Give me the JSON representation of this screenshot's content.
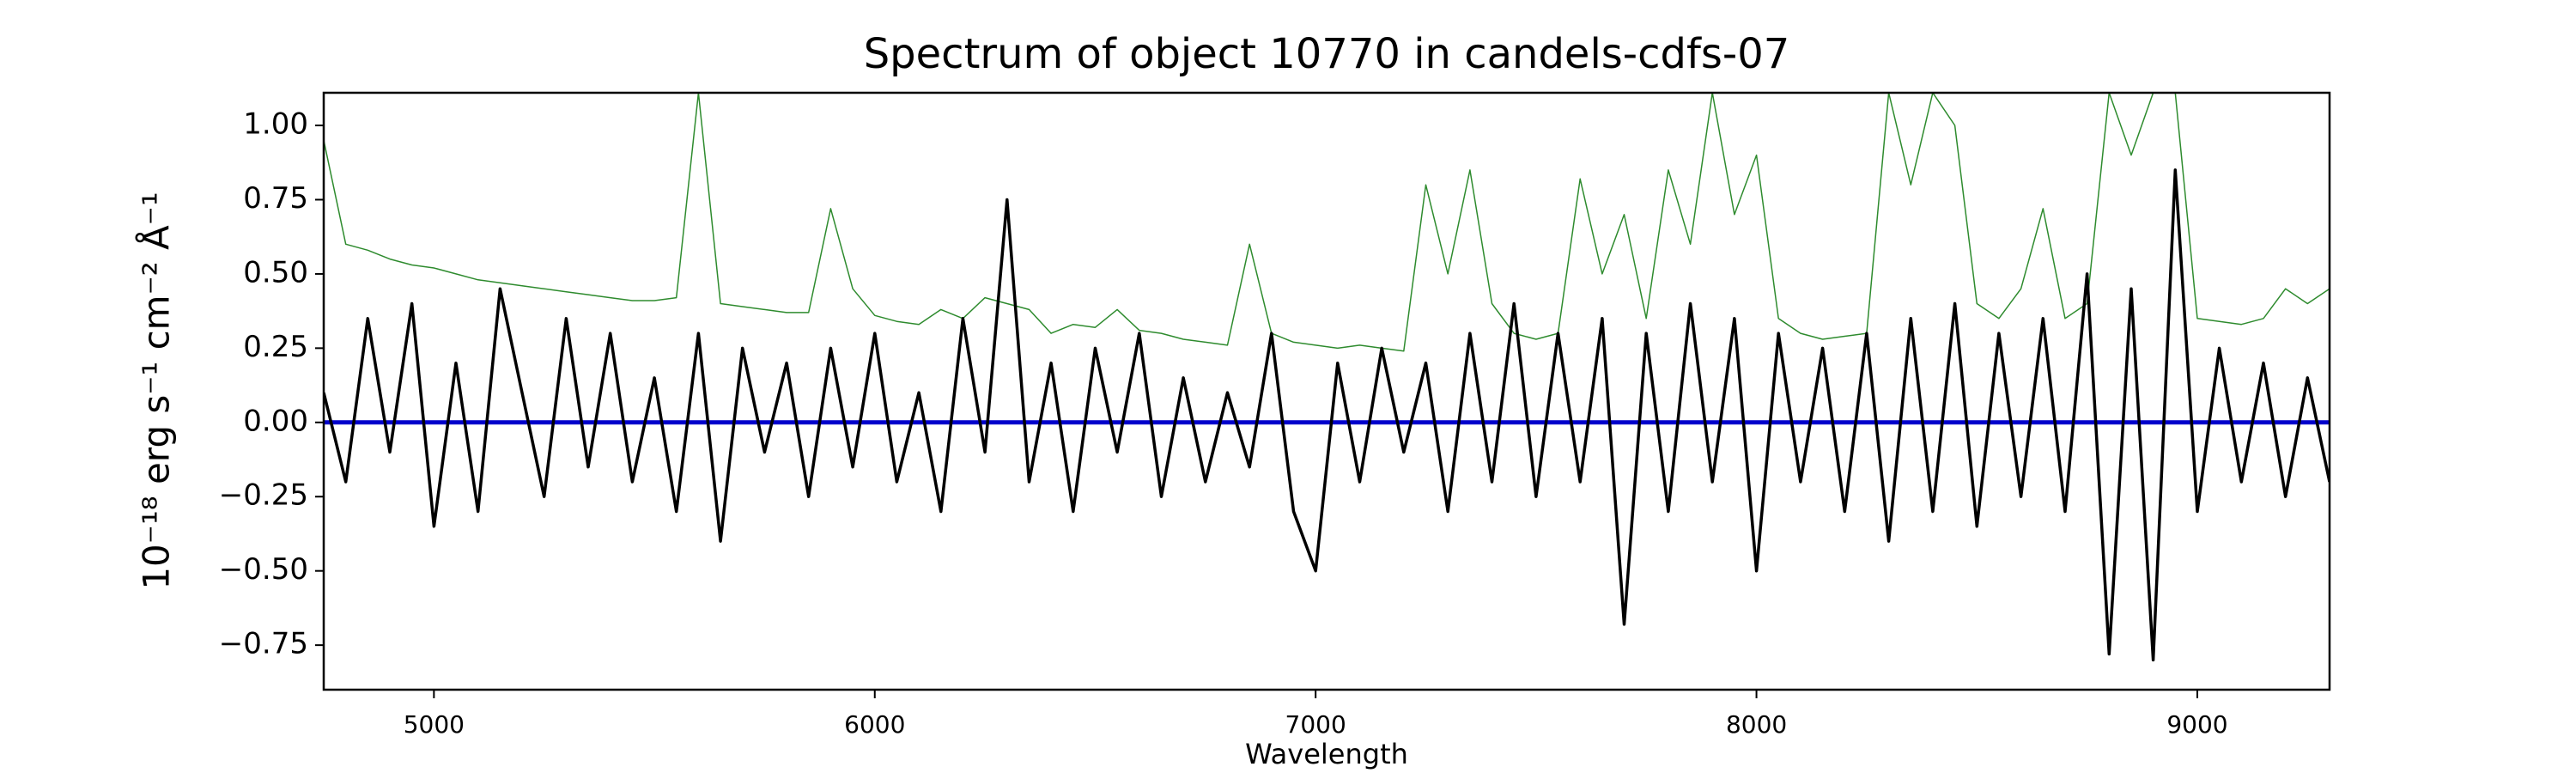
{
  "chart_data": {
    "type": "line",
    "title": "Spectrum of object 10770 in candels-cdfs-07",
    "xlabel": "Wavelength",
    "ylabel": "10⁻¹⁸ erg s⁻¹ cm⁻² Å⁻¹",
    "x": [
      4750,
      4800,
      4850,
      4900,
      4950,
      5000,
      5050,
      5100,
      5150,
      5200,
      5250,
      5300,
      5350,
      5400,
      5450,
      5500,
      5550,
      5600,
      5650,
      5700,
      5750,
      5800,
      5850,
      5900,
      5950,
      6000,
      6050,
      6100,
      6150,
      6200,
      6250,
      6300,
      6350,
      6400,
      6450,
      6500,
      6550,
      6600,
      6650,
      6700,
      6750,
      6800,
      6850,
      6900,
      6950,
      7000,
      7050,
      7100,
      7150,
      7200,
      7250,
      7300,
      7350,
      7400,
      7450,
      7500,
      7550,
      7600,
      7650,
      7700,
      7750,
      7800,
      7850,
      7900,
      7950,
      8000,
      8050,
      8100,
      8150,
      8200,
      8250,
      8300,
      8350,
      8400,
      8450,
      8500,
      8550,
      8600,
      8650,
      8700,
      8750,
      8800,
      8850,
      8900,
      8950,
      9000,
      9050,
      9100,
      9150,
      9200,
      9250,
      9300
    ],
    "series": [
      {
        "color": "#2e8b2e",
        "width": 1.5,
        "values": [
          0.95,
          0.6,
          0.58,
          0.55,
          0.53,
          0.52,
          0.5,
          0.48,
          0.47,
          0.46,
          0.45,
          0.44,
          0.43,
          0.42,
          0.41,
          0.41,
          0.42,
          1.11,
          0.4,
          0.39,
          0.38,
          0.37,
          0.37,
          0.72,
          0.45,
          0.36,
          0.34,
          0.33,
          0.38,
          0.35,
          0.42,
          0.4,
          0.38,
          0.3,
          0.33,
          0.32,
          0.38,
          0.31,
          0.3,
          0.28,
          0.27,
          0.26,
          0.6,
          0.3,
          0.27,
          0.26,
          0.25,
          0.26,
          0.25,
          0.24,
          0.8,
          0.5,
          0.85,
          0.4,
          0.3,
          0.28,
          0.3,
          0.82,
          0.5,
          0.7,
          0.35,
          0.85,
          0.6,
          1.11,
          0.7,
          0.9,
          0.35,
          0.3,
          0.28,
          0.29,
          0.3,
          1.11,
          0.8,
          1.11,
          1.0,
          0.4,
          0.35,
          0.45,
          0.72,
          0.35,
          0.4,
          1.11,
          0.9,
          1.11,
          1.11,
          0.35,
          0.34,
          0.33,
          0.35,
          0.45,
          0.4,
          0.45
        ]
      },
      {
        "color": "#0000cc",
        "width": 5,
        "values": [
          0,
          0,
          0,
          0,
          0,
          0,
          0,
          0,
          0,
          0,
          0,
          0,
          0,
          0,
          0,
          0,
          0,
          0,
          0,
          0,
          0,
          0,
          0,
          0,
          0,
          0,
          0,
          0,
          0,
          0,
          0,
          0,
          0,
          0,
          0,
          0,
          0,
          0,
          0,
          0,
          0,
          0,
          0,
          0,
          0,
          0,
          0,
          0,
          0,
          0,
          0,
          0,
          0,
          0,
          0,
          0,
          0,
          0,
          0,
          0,
          0,
          0,
          0,
          0,
          0,
          0,
          0,
          0,
          0,
          0,
          0,
          0,
          0,
          0,
          0,
          0,
          0,
          0,
          0,
          0,
          0,
          0,
          0,
          0,
          0,
          0,
          0,
          0,
          0,
          0,
          0,
          0
        ]
      },
      {
        "color": "#000000",
        "width": 3.5,
        "values": [
          0.1,
          -0.2,
          0.35,
          -0.1,
          0.4,
          -0.35,
          0.2,
          -0.3,
          0.45,
          0.1,
          -0.25,
          0.35,
          -0.15,
          0.3,
          -0.2,
          0.15,
          -0.3,
          0.3,
          -0.4,
          0.25,
          -0.1,
          0.2,
          -0.25,
          0.25,
          -0.15,
          0.3,
          -0.2,
          0.1,
          -0.3,
          0.35,
          -0.1,
          0.75,
          -0.2,
          0.2,
          -0.3,
          0.25,
          -0.1,
          0.3,
          -0.25,
          0.15,
          -0.2,
          0.1,
          -0.15,
          0.3,
          -0.3,
          -0.5,
          0.2,
          -0.2,
          0.25,
          -0.1,
          0.2,
          -0.3,
          0.3,
          -0.2,
          0.4,
          -0.25,
          0.3,
          -0.2,
          0.35,
          -0.68,
          0.3,
          -0.3,
          0.4,
          -0.2,
          0.35,
          -0.5,
          0.3,
          -0.2,
          0.25,
          -0.3,
          0.3,
          -0.4,
          0.35,
          -0.3,
          0.4,
          -0.35,
          0.3,
          -0.25,
          0.35,
          -0.3,
          0.5,
          -0.78,
          0.45,
          -0.8,
          0.85,
          -0.3,
          0.25,
          -0.2,
          0.2,
          -0.25,
          0.15,
          -0.2
        ]
      }
    ],
    "xlim": [
      4750,
      9300
    ],
    "ylim": [
      -0.9,
      1.11
    ],
    "xticks": [
      5000,
      6000,
      7000,
      8000,
      9000
    ],
    "yticks": [
      {
        "value": -0.75,
        "label": "−0.75"
      },
      {
        "value": -0.5,
        "label": "−0.50"
      },
      {
        "value": -0.25,
        "label": "−0.25"
      },
      {
        "value": 0,
        "label": "0.00"
      },
      {
        "value": 0.25,
        "label": "0.25"
      },
      {
        "value": 0.5,
        "label": "0.50"
      },
      {
        "value": 0.75,
        "label": "0.75"
      },
      {
        "value": 1,
        "label": "1.00"
      }
    ],
    "grid": false
  }
}
